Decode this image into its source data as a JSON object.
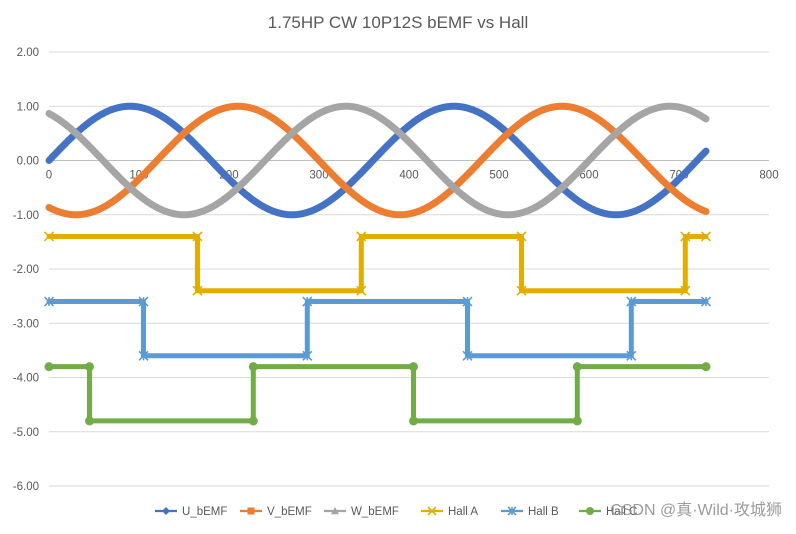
{
  "chart_data": {
    "type": "line",
    "title": "1.75HP CW 10P12S bEMF vs Hall",
    "xlabel": "",
    "ylabel": "",
    "xlim": [
      0,
      800
    ],
    "ylim": [
      -6,
      2
    ],
    "xticks": [
      0,
      100,
      200,
      300,
      400,
      500,
      600,
      700,
      800
    ],
    "yticks": [
      2,
      1,
      0,
      -1,
      -2,
      -3,
      -4,
      -5,
      -6
    ],
    "ytick_labels": [
      "2.00",
      "1.00",
      "0.00",
      "-1.00",
      "-2.00",
      "-3.00",
      "-4.00",
      "-5.00",
      "-6.00"
    ],
    "grid": "horizontal",
    "legend_position": "bottom",
    "series": [
      {
        "name": "U_bEMF",
        "color": "#4472C4",
        "marker": "diamond",
        "kind": "sine",
        "amplitude": 1,
        "period": 360,
        "phase_deg": 0,
        "x_range": [
          0,
          730
        ]
      },
      {
        "name": "V_bEMF",
        "color": "#ED7D31",
        "marker": "square",
        "kind": "sine",
        "amplitude": 1,
        "period": 360,
        "phase_deg": -120,
        "x_range": [
          0,
          730
        ]
      },
      {
        "name": "W_bEMF",
        "color": "#A5A5A5",
        "marker": "triangle",
        "kind": "sine",
        "amplitude": 1,
        "period": 360,
        "phase_deg": 120,
        "x_range": [
          0,
          730
        ]
      },
      {
        "name": "Hall A",
        "color": "#E2AC00",
        "marker": "x",
        "kind": "step",
        "points": [
          [
            0,
            -1.4
          ],
          [
            165,
            -1.4
          ],
          [
            165,
            -2.4
          ],
          [
            347,
            -2.4
          ],
          [
            347,
            -1.4
          ],
          [
            525,
            -1.4
          ],
          [
            525,
            -2.4
          ],
          [
            707,
            -2.4
          ],
          [
            707,
            -1.4
          ],
          [
            730,
            -1.4
          ]
        ]
      },
      {
        "name": "Hall B",
        "color": "#5B9BD5",
        "marker": "asterisk",
        "kind": "step",
        "points": [
          [
            0,
            -2.6
          ],
          [
            105,
            -2.6
          ],
          [
            105,
            -3.6
          ],
          [
            287,
            -3.6
          ],
          [
            287,
            -2.6
          ],
          [
            465,
            -2.6
          ],
          [
            465,
            -3.6
          ],
          [
            647,
            -3.6
          ],
          [
            647,
            -2.6
          ],
          [
            730,
            -2.6
          ]
        ]
      },
      {
        "name": "Hall C",
        "color": "#70AD47",
        "marker": "circle",
        "kind": "step",
        "points": [
          [
            0,
            -3.8
          ],
          [
            45,
            -3.8
          ],
          [
            45,
            -4.8
          ],
          [
            227,
            -4.8
          ],
          [
            227,
            -3.8
          ],
          [
            405,
            -3.8
          ],
          [
            405,
            -4.8
          ],
          [
            587,
            -4.8
          ],
          [
            587,
            -3.8
          ],
          [
            730,
            -3.8
          ]
        ]
      }
    ]
  },
  "watermark": "CSDN @真·Wild·攻城狮"
}
